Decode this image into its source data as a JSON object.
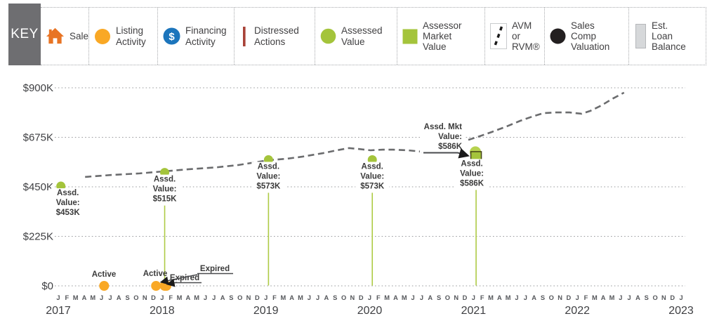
{
  "key": {
    "title": "KEY",
    "items": [
      {
        "id": "sale",
        "label": "Sale",
        "icon": "house-icon",
        "color": "#E87424"
      },
      {
        "id": "listing-activity",
        "label": "Listing Activity",
        "icon": "yellow-circle-icon",
        "color": "#F9A825"
      },
      {
        "id": "financing-activity",
        "label": "Financing Activity",
        "icon": "dollar-circle-icon",
        "color": "#1C75BC"
      },
      {
        "id": "distressed-actions",
        "label": "Distressed Actions",
        "icon": "red-bar-icon",
        "color": "#A84238"
      },
      {
        "id": "assessed-value",
        "label": "Assessed Value",
        "icon": "green-circle-icon",
        "color": "#A4C43B"
      },
      {
        "id": "assessor-market-value",
        "label": "Assessor Market Value",
        "icon": "green-square-icon",
        "color": "#A4C43B"
      },
      {
        "id": "avm-or-rvm",
        "label": "AVM or RVM®",
        "icon": "dashed-line-icon",
        "color": "#1A1A1A"
      },
      {
        "id": "sales-comp-valuation",
        "label": "Sales Comp Valuation",
        "icon": "black-circle-icon",
        "color": "#231F20"
      },
      {
        "id": "est-loan-balance",
        "label": "Est. Loan Balance",
        "icon": "gray-bar-icon",
        "color": "#D6D8DA"
      }
    ]
  },
  "chart_data": {
    "type": "line",
    "y_axis": {
      "min": 0,
      "max": 900000,
      "ticks": [
        {
          "label": "$900K",
          "value_k": 900
        },
        {
          "label": "$675K",
          "value_k": 675
        },
        {
          "label": "$450K",
          "value_k": 450
        },
        {
          "label": "$225K",
          "value_k": 225
        },
        {
          "label": "$0",
          "value_k": 0
        }
      ]
    },
    "x_axis": {
      "month_letters": "JFMAMJJASOND",
      "years": [
        2017,
        2018,
        2019,
        2020,
        2021,
        2022,
        2023
      ]
    },
    "series": [
      {
        "name": "Assessed Value",
        "type": "scatter",
        "color": "#A4C43B",
        "points": [
          {
            "month_index": 0,
            "year": 2017,
            "value_k": 453,
            "label_lines": [
              "Assd.",
              "Value:",
              "$453K"
            ],
            "drop_line": false
          },
          {
            "month_index": 12,
            "year": 2018,
            "value_k": 515,
            "label_lines": [
              "Assd.",
              "Value:",
              "$515K"
            ],
            "drop_line": true
          },
          {
            "month_index": 24,
            "year": 2019,
            "value_k": 573,
            "label_lines": [
              "Assd.",
              "Value:",
              "$573K"
            ],
            "drop_line": true
          },
          {
            "month_index": 36,
            "year": 2020,
            "value_k": 573,
            "label_lines": [
              "Assd.",
              "Value:",
              "$573K"
            ],
            "drop_line": true
          },
          {
            "month_index": 48,
            "year": 2021,
            "value_k": 586,
            "label_lines": [
              "Assd.",
              "Value:",
              "$586K"
            ],
            "drop_line": true
          }
        ]
      },
      {
        "name": "Assessor Market Value",
        "type": "scatter-square",
        "color": "#A4C43B",
        "points": [
          {
            "month_index": 48,
            "year": 2021,
            "value_k": 586,
            "label_lines": [
              "Assd. Mkt",
              "Value:",
              "$586K"
            ]
          }
        ]
      },
      {
        "name": "AVM or RVM",
        "type": "dashed-line",
        "color": "#6B6C6E",
        "points": [
          [
            3.1,
            495
          ],
          [
            6.2,
            504
          ],
          [
            9.4,
            511
          ],
          [
            12.1,
            520
          ],
          [
            15.1,
            530
          ],
          [
            18.4,
            539
          ],
          [
            20.8,
            549
          ],
          [
            24.3,
            571
          ],
          [
            26.5,
            578
          ],
          [
            28.2,
            587
          ],
          [
            30.6,
            603
          ],
          [
            32.2,
            616
          ],
          [
            33.6,
            626
          ],
          [
            34.7,
            622
          ],
          [
            36.1,
            616
          ],
          [
            37.5,
            619
          ],
          [
            38.7,
            619
          ],
          [
            40.4,
            616
          ],
          [
            42.0,
            610
          ],
          [
            43.6,
            619
          ],
          [
            45.3,
            635
          ],
          [
            46.9,
            657
          ],
          [
            48.5,
            677
          ],
          [
            50.1,
            699
          ],
          [
            51.8,
            724
          ],
          [
            53.4,
            750
          ],
          [
            55.0,
            772
          ],
          [
            56.1,
            785
          ],
          [
            57.5,
            788
          ],
          [
            59.1,
            788
          ],
          [
            60.5,
            782
          ],
          [
            61.5,
            795
          ],
          [
            62.8,
            820
          ],
          [
            64.0,
            849
          ],
          [
            65.4,
            878
          ]
        ]
      },
      {
        "name": "Listing Activity",
        "type": "event",
        "color": "#F9A825",
        "points": [
          {
            "month_index": 5,
            "label": "Active"
          },
          {
            "month_index": 11,
            "label": "Active"
          },
          {
            "month_index": 12,
            "label": "Expired"
          },
          {
            "month_index": 12.2,
            "label": "Expired"
          }
        ]
      }
    ],
    "annotations": {
      "active_labels": [
        "Active",
        "Active"
      ],
      "expired_labels": [
        "Expired",
        "Expired"
      ]
    },
    "colors": {
      "grid": "#9A9B9E",
      "axis_text": "#3E3F42",
      "month_text": "#55575B",
      "annotation_text": "#3A3A3A",
      "drop_line": "#AECB45",
      "leader_line": "#4A4B4E",
      "square_border": "#454518",
      "square_halo": "#B7D24F"
    }
  }
}
